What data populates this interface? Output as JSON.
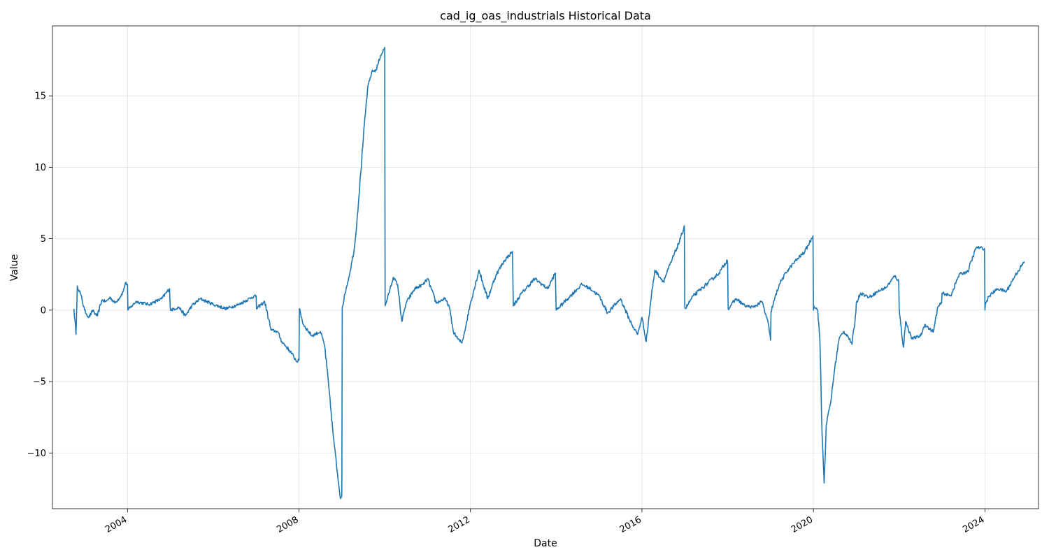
{
  "chart_data": {
    "type": "line",
    "title": "cad_ig_oas_industrials Historical Data",
    "xlabel": "Date",
    "ylabel": "Value",
    "xlim": [
      2002.25,
      2025.25
    ],
    "ylim": [
      -13.9,
      19.9
    ],
    "grid": true,
    "x_ticks": [
      2004,
      2008,
      2012,
      2016,
      2020,
      2024
    ],
    "y_ticks": [
      -10,
      -5,
      0,
      5,
      10,
      15
    ],
    "y_tick_labels": [
      "−10",
      "−5",
      "0",
      "5",
      "10",
      "15"
    ],
    "line_color": "#1f77b4",
    "series": [
      {
        "x": [
          2002.75,
          2002.8,
          2002.83,
          2002.9,
          2003.0,
          2003.05,
          2003.1,
          2003.2,
          2003.25,
          2003.3,
          2003.4,
          2003.5,
          2003.6,
          2003.7,
          2003.8,
          2003.9,
          2003.95,
          2004.0,
          2004.01,
          2004.2,
          2004.5,
          2004.8,
          2004.98,
          2005.0,
          2005.2,
          2005.35,
          2005.5,
          2005.7,
          2006.0,
          2006.3,
          2006.6,
          2006.9,
          2007.0,
          2007.01,
          2007.2,
          2007.35,
          2007.5,
          2007.6,
          2007.8,
          2007.95,
          2008.0,
          2008.01,
          2008.1,
          2008.3,
          2008.5,
          2008.6,
          2008.7,
          2008.8,
          2008.9,
          2008.97,
          2009.0,
          2009.01,
          2009.1,
          2009.2,
          2009.3,
          2009.4,
          2009.5,
          2009.6,
          2009.7,
          2009.8,
          2009.9,
          2009.99,
          2010.0,
          2010.01,
          2010.1,
          2010.2,
          2010.3,
          2010.4,
          2010.5,
          2010.7,
          2010.9,
          2011.0,
          2011.2,
          2011.4,
          2011.5,
          2011.6,
          2011.7,
          2011.8,
          2011.9,
          2012.0,
          2012.2,
          2012.4,
          2012.6,
          2012.8,
          2012.98,
          2013.0,
          2013.2,
          2013.5,
          2013.8,
          2013.98,
          2014.0,
          2014.3,
          2014.6,
          2014.8,
          2015.0,
          2015.2,
          2015.5,
          2015.7,
          2015.8,
          2015.9,
          2016.0,
          2016.1,
          2016.2,
          2016.3,
          2016.5,
          2016.7,
          2016.9,
          2016.99,
          2017.0,
          2017.01,
          2017.2,
          2017.5,
          2017.8,
          2017.99,
          2018.0,
          2018.01,
          2018.2,
          2018.4,
          2018.6,
          2018.8,
          2018.95,
          2019.0,
          2019.01,
          2019.2,
          2019.4,
          2019.6,
          2019.8,
          2019.99,
          2020.0,
          2020.01,
          2020.1,
          2020.15,
          2020.2,
          2020.25,
          2020.3,
          2020.4,
          2020.5,
          2020.6,
          2020.7,
          2020.8,
          2020.9,
          2020.99,
          2021.0,
          2021.1,
          2021.3,
          2021.5,
          2021.7,
          2021.9,
          2021.99,
          2022.0,
          2022.01,
          2022.1,
          2022.15,
          2022.3,
          2022.5,
          2022.6,
          2022.7,
          2022.8,
          2022.9,
          2022.99,
          2023.0,
          2023.2,
          2023.4,
          2023.6,
          2023.8,
          2023.99,
          2024.0,
          2024.01,
          2024.1,
          2024.3,
          2024.5,
          2024.7,
          2024.9,
          2024.92
        ],
        "y": [
          0.1,
          -1.7,
          1.7,
          1.2,
          0.0,
          -0.3,
          -0.5,
          0.0,
          -0.3,
          -0.4,
          0.7,
          0.6,
          0.9,
          0.5,
          0.8,
          1.3,
          1.9,
          1.8,
          0.0,
          0.6,
          0.4,
          0.8,
          1.5,
          0.0,
          0.2,
          -0.4,
          0.3,
          0.8,
          0.4,
          0.1,
          0.4,
          0.9,
          1.0,
          0.1,
          0.6,
          -1.4,
          -1.5,
          -2.2,
          -2.9,
          -3.6,
          -3.5,
          0.1,
          -1.0,
          -1.8,
          -1.5,
          -2.5,
          -5.5,
          -8.8,
          -11.5,
          -13.2,
          -13.0,
          0.2,
          1.5,
          2.8,
          4.5,
          8.0,
          12.0,
          15.5,
          16.7,
          16.8,
          17.8,
          18.3,
          18.4,
          0.3,
          1.2,
          2.3,
          1.8,
          -0.8,
          0.5,
          1.5,
          1.8,
          2.2,
          0.5,
          0.8,
          0.3,
          -1.5,
          -2.0,
          -2.3,
          -1.0,
          0.5,
          2.8,
          0.8,
          2.5,
          3.5,
          4.1,
          0.3,
          1.2,
          2.2,
          1.5,
          2.6,
          0.0,
          0.9,
          1.8,
          1.5,
          1.0,
          -0.2,
          0.8,
          -0.6,
          -1.2,
          -1.7,
          -0.5,
          -2.2,
          0.5,
          2.8,
          2.0,
          3.5,
          5.0,
          5.9,
          0.2,
          0.1,
          1.0,
          1.8,
          2.6,
          3.5,
          3.2,
          0.1,
          0.8,
          0.3,
          0.2,
          0.6,
          -1.0,
          -2.1,
          -0.1,
          1.8,
          2.8,
          3.5,
          4.1,
          5.2,
          0.0,
          0.3,
          0.0,
          -2.0,
          -8.5,
          -12.1,
          -8.0,
          -6.5,
          -4.0,
          -2.0,
          -1.5,
          -1.8,
          -2.4,
          -0.2,
          0.5,
          1.2,
          0.9,
          1.3,
          1.6,
          2.4,
          2.0,
          0.1,
          -0.3,
          -2.6,
          -0.8,
          -2.0,
          -1.8,
          -1.0,
          -1.3,
          -1.5,
          0.2,
          0.5,
          1.2,
          1.0,
          2.5,
          2.7,
          4.4,
          4.3,
          0.0,
          0.4,
          1.0,
          1.5,
          1.3,
          2.4,
          3.3,
          3.4
        ]
      }
    ]
  }
}
